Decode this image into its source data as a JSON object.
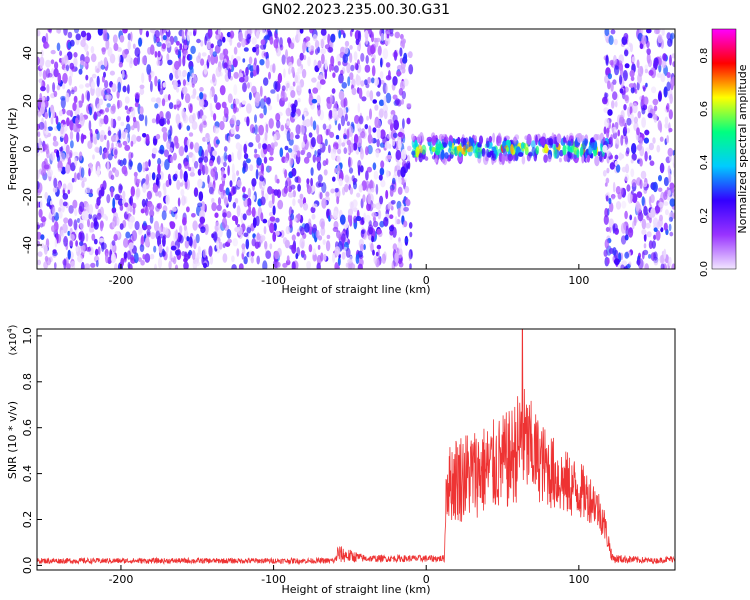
{
  "title": "GN02.2023.235.00.30.G31",
  "chart_data": [
    {
      "type": "heatmap",
      "xlabel": "Height of straight line (km)",
      "ylabel": "Frequency (Hz)",
      "xlim": [
        -255,
        163
      ],
      "ylim": [
        -50,
        50
      ],
      "xticks": [
        -200,
        -100,
        0,
        100
      ],
      "yticks": [
        -40,
        -20,
        0,
        20,
        40
      ],
      "colorbar": {
        "label": "Normalized spectral amplitude",
        "range": [
          0.0,
          0.9
        ],
        "ticks": [
          "0.0",
          "0.2",
          "0.4",
          "0.6",
          "0.8"
        ],
        "colors": [
          "#f2e6ff",
          "#9933ff",
          "#3300ff",
          "#00ccff",
          "#00ff80",
          "#ffff00",
          "#ff0000",
          "#ff00ff"
        ]
      },
      "regions": [
        {
          "x_range": [
            -255,
            -10
          ],
          "freq_range": [
            -50,
            50
          ],
          "level": 0.08
        },
        {
          "x_range": [
            -10,
            122
          ],
          "freq_range": [
            -5,
            5
          ],
          "level": 0.5
        },
        {
          "x_range": [
            117,
            163
          ],
          "freq_range": [
            -50,
            50
          ],
          "level": 0.08
        }
      ],
      "grid": false
    },
    {
      "type": "line",
      "xlabel": "Height of straight line (km)",
      "ylabel": "SNR (10 * v/v)",
      "yscale_label": "(x10",
      "yscale_exp": "4",
      "xlim": [
        -255,
        163
      ],
      "ylim": [
        -0.02,
        1.03
      ],
      "xticks": [
        -200,
        -100,
        0,
        100
      ],
      "yticks": [
        "0.0",
        "0.2",
        "0.4",
        "0.6",
        "0.8",
        "1.0"
      ],
      "color": "#ee3333",
      "grid": false,
      "profile": {
        "x": [
          -255,
          -60,
          -58,
          -40,
          12,
          13,
          20,
          40,
          55,
          63,
          75,
          90,
          100,
          110,
          116,
          122,
          150,
          163
        ],
        "base": [
          0.02,
          0.02,
          0.05,
          0.03,
          0.03,
          0.35,
          0.38,
          0.42,
          0.46,
          0.55,
          0.45,
          0.36,
          0.33,
          0.28,
          0.2,
          0.03,
          0.02,
          0.03
        ],
        "noise": [
          0.012,
          0.012,
          0.04,
          0.015,
          0.015,
          0.15,
          0.2,
          0.2,
          0.22,
          0.25,
          0.18,
          0.15,
          0.13,
          0.1,
          0.08,
          0.02,
          0.012,
          0.015
        ],
        "peak": {
          "x": 63,
          "y": 1.03
        }
      }
    }
  ]
}
